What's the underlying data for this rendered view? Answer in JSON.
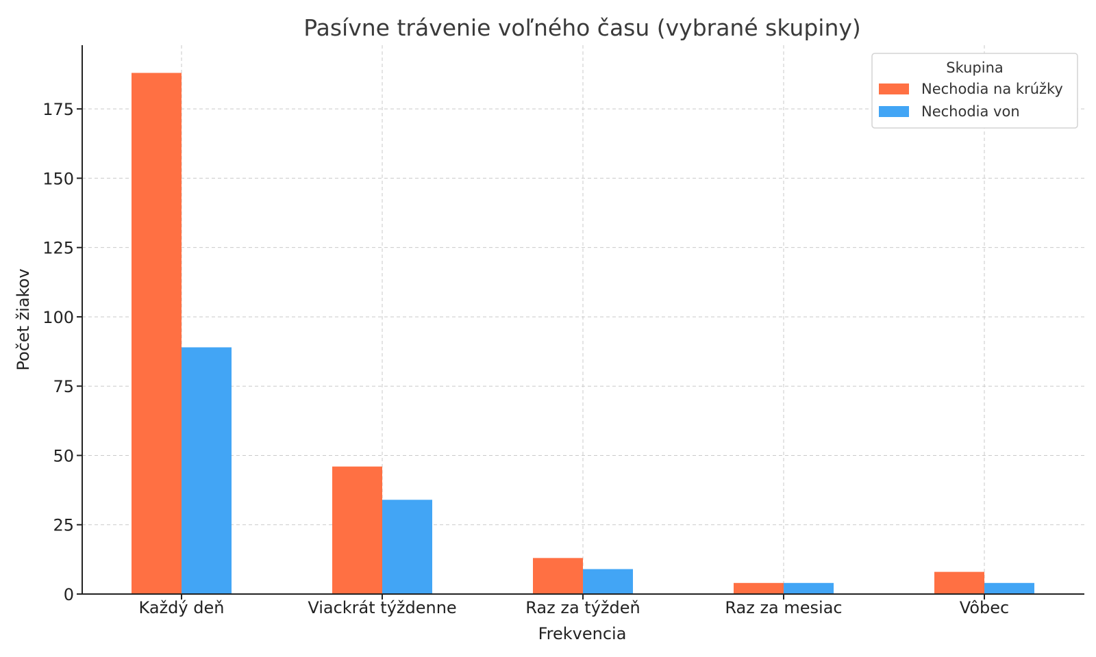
{
  "chart_data": {
    "type": "bar",
    "title": "Pasívne trávenie voľného času (vybrané skupiny)",
    "xlabel": "Frekvencia",
    "ylabel": "Počet žiakov",
    "categories": [
      "Každý deň",
      "Viackrát týždenne",
      "Raz za týždeň",
      "Raz za mesiac",
      "Vôbec"
    ],
    "series": [
      {
        "name": "Nechodia na krúžky",
        "values": [
          188,
          46,
          13,
          4,
          8
        ],
        "color": "#ff7043"
      },
      {
        "name": "Nechodia von",
        "values": [
          89,
          34,
          9,
          4,
          4
        ],
        "color": "#42a5f5"
      }
    ],
    "ylim": [
      0,
      198
    ],
    "yticks": [
      0,
      25,
      50,
      75,
      100,
      125,
      150,
      175
    ],
    "grid": true,
    "legend": {
      "title": "Skupina",
      "placement": "top-right"
    }
  }
}
